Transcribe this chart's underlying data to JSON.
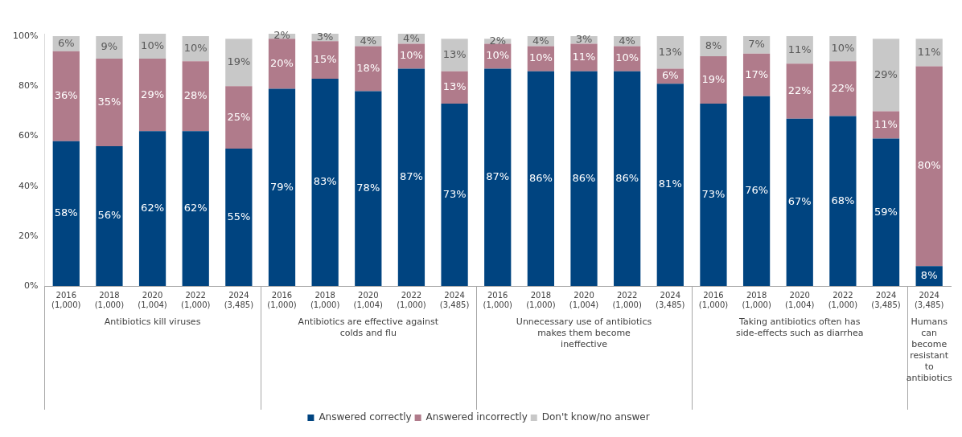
{
  "chart_data": {
    "type": "bar",
    "stacked": true,
    "categories": [
      "2016 (1,000)",
      "2018 (1,000)",
      "2020 (1,004)",
      "2022 (1,000)",
      "2024 (3,485)",
      "2016 (1,000)",
      "2018 (1,000)",
      "2020 (1,004)",
      "2022 (1,000)",
      "2024 (3,485)",
      "2016 (1,000)",
      "2018 (1,000)",
      "2020 (1,004)",
      "2022 (1,000)",
      "2024 (3,485)",
      "2016 (1,000)",
      "2018 (1,000)",
      "2020 (1,004)",
      "2022 (1,000)",
      "2024 (3,485)",
      "2024 (3,485)"
    ],
    "annotations": [
      "Antibiotics kill viruses",
      "Antibiotics are effective against colds and flu",
      "Unnecessary use of antibiotics makes them become ineffective",
      "Taking antibiotics often has side-effects such as diarrhea",
      "Humans can become resistant to antibiotics"
    ],
    "series": [
      {
        "name": "Answered correctly",
        "color": "#004480",
        "values": [
          58,
          56,
          62,
          62,
          55,
          79,
          83,
          78,
          87,
          73,
          87,
          86,
          86,
          86,
          81,
          73,
          76,
          67,
          68,
          59,
          8
        ],
        "value_labels": [
          "58%",
          "56%",
          "62%",
          "62%",
          "55%",
          "79%",
          "83%",
          "78%",
          "87%",
          "73%",
          "87%",
          "86%",
          "86%",
          "86%",
          "81%",
          "73%",
          "76%",
          "67%",
          "68%",
          "59%",
          "8%"
        ]
      },
      {
        "name": "Answered incorrectly",
        "color": "#b07b8b",
        "values": [
          36,
          35,
          29,
          28,
          25,
          20,
          15,
          18,
          10,
          13,
          10,
          10,
          11,
          10,
          6,
          19,
          17,
          22,
          22,
          11,
          80
        ],
        "value_labels": [
          "36%",
          "35%",
          "29%",
          "28%",
          "25%",
          "20%",
          "15%",
          "18%",
          "10%",
          "13%",
          "10%",
          "10%",
          "11%",
          "10%",
          "6%",
          "19%",
          "17%",
          "22%",
          "22%",
          "11%",
          "80%"
        ]
      },
      {
        "name": "Don't know/no answer",
        "color": "#c8c8c8",
        "values": [
          6,
          9,
          10,
          10,
          19,
          2,
          3,
          4,
          4,
          13,
          2,
          4,
          3,
          4,
          13,
          8,
          7,
          11,
          10,
          29,
          11
        ],
        "value_labels": [
          "6%",
          "9%",
          "10%",
          "10%",
          "19%",
          "2%",
          "3%",
          "4%",
          "4%",
          "13%",
          "2%",
          "4%",
          "3%",
          "4%",
          "13%",
          "8%",
          "7%",
          "11%",
          "10%",
          "29%",
          "11%"
        ]
      }
    ],
    "ylim": [
      0,
      101
    ],
    "yticks": [
      {
        "value": 0,
        "label": "0%"
      },
      {
        "value": 20,
        "label": "20%"
      },
      {
        "value": 40,
        "label": "40%"
      },
      {
        "value": 60,
        "label": "60%"
      },
      {
        "value": 80,
        "label": "80%"
      },
      {
        "value": 100,
        "label": "100%"
      }
    ],
    "grid": false,
    "legend": "bottom"
  }
}
